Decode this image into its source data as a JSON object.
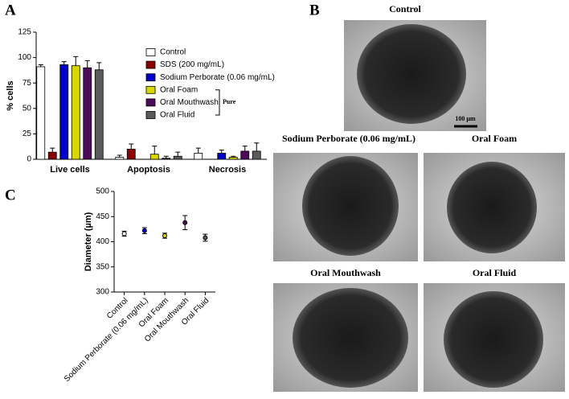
{
  "figure": {
    "panel_a": "A",
    "panel_b": "B",
    "panel_c": "C",
    "images": [
      {
        "title": "Control",
        "scale_bar": "100 µm"
      },
      {
        "title": "Sodium Perborate (0.06 mg/mL)"
      },
      {
        "title": "Oral Foam"
      },
      {
        "title": "Oral Mouthwash"
      },
      {
        "title": "Oral Fluid"
      }
    ]
  },
  "chart_data": [
    {
      "type": "bar",
      "ylabel": "% cells",
      "categories": [
        "Live cells",
        "Apoptosis",
        "Necrosis"
      ],
      "ylim": [
        0,
        125
      ],
      "yticks": [
        0,
        25,
        50,
        75,
        100,
        125
      ],
      "legend": "right",
      "bracket_label": "Pure",
      "series": [
        {
          "name": "Control",
          "color": "#ffffff",
          "values": [
            91,
            2,
            6
          ],
          "errors": [
            2,
            2,
            5
          ]
        },
        {
          "name": "SDS (200 mg/mL)",
          "color": "#8b0000",
          "values": [
            7,
            10,
            0
          ],
          "errors": [
            4,
            5,
            0
          ]
        },
        {
          "name": "Sodium Perborate (0.06 mg/mL)",
          "color": "#0000cc",
          "values": [
            93,
            0,
            6
          ],
          "errors": [
            3,
            0,
            3
          ]
        },
        {
          "name": "Oral Foam",
          "color": "#d8d800",
          "values": [
            92,
            5,
            2
          ],
          "errors": [
            9,
            8,
            1
          ]
        },
        {
          "name": "Oral Mouthwash",
          "color": "#4b0a5a",
          "values": [
            90,
            1,
            8
          ],
          "errors": [
            7,
            2,
            5
          ]
        },
        {
          "name": "Oral Fluid",
          "color": "#5a5a5a",
          "values": [
            88,
            3,
            8
          ],
          "errors": [
            7,
            4,
            8
          ]
        }
      ]
    },
    {
      "type": "dot",
      "ylabel": "Diameter (µm)",
      "categories": [
        "Control",
        "Sodium Perborate (0.06 mg/mL)",
        "Oral Foam",
        "Oral Mouthwash",
        "Oral Fluid"
      ],
      "values": [
        416,
        422,
        412,
        438,
        408
      ],
      "errors": [
        5,
        6,
        5,
        14,
        7
      ],
      "colors": [
        "#ffffff",
        "#0000cc",
        "#d8d800",
        "#4b0a5a",
        "#5a5a5a"
      ],
      "ylim": [
        300,
        500
      ],
      "yticks": [
        300,
        350,
        400,
        450,
        500
      ]
    }
  ]
}
